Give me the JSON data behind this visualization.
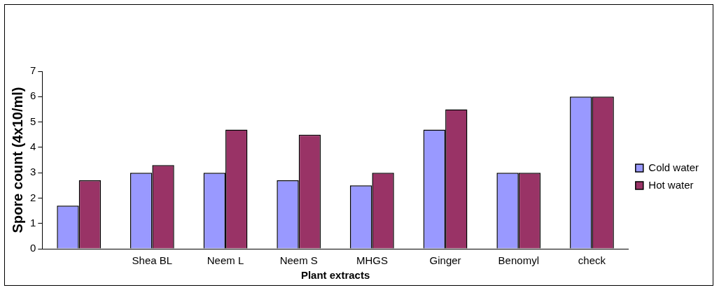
{
  "chart_data": {
    "type": "bar",
    "xlabel": "Plant extracts",
    "ylabel": "Spore count (4x10/ml)",
    "categories": [
      null,
      "Shea BL",
      "Neem L",
      "Neem S",
      "MHGS",
      "Ginger",
      "Benomyl",
      "check"
    ],
    "series": [
      {
        "name": "Cold water",
        "color": "#9999ff",
        "values": [
          1.7,
          3,
          3,
          2.7,
          2.5,
          4.7,
          3,
          6
        ]
      },
      {
        "name": "Hot water",
        "color": "#993366",
        "values": [
          2.7,
          3.3,
          4.7,
          4.5,
          3,
          5.5,
          3,
          6
        ]
      }
    ],
    "ylim": [
      0,
      7
    ],
    "yticks": [
      0,
      1,
      2,
      3,
      4,
      5,
      6,
      7
    ],
    "grid": false,
    "legend": "right"
  }
}
